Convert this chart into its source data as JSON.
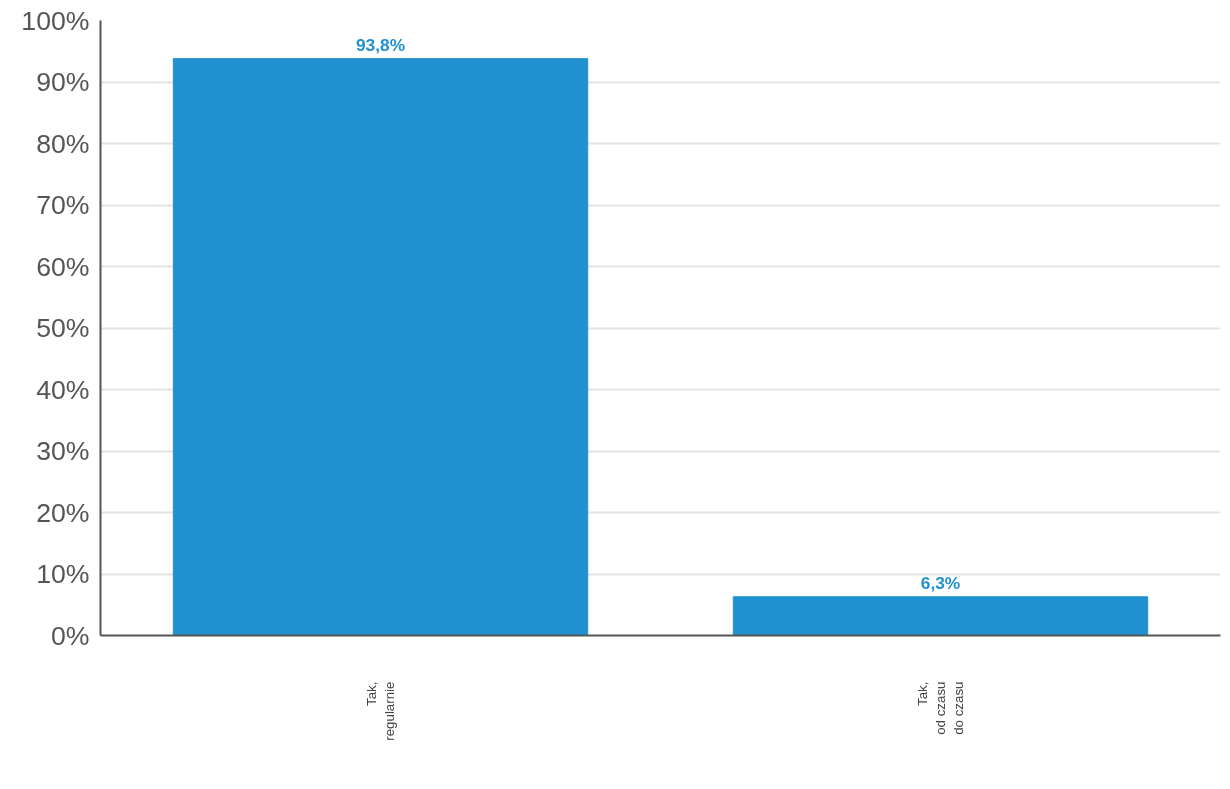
{
  "chart_data": {
    "type": "bar",
    "categories": [
      "Tak,\nregularnie",
      "Tak,\nod czasu\ndo czasu"
    ],
    "values": [
      93.8,
      6.3
    ],
    "value_labels": [
      "93,8%",
      "6,3%"
    ],
    "color": "#2190d1",
    "ylim": [
      0,
      100
    ],
    "yticks": [
      {
        "value": 0,
        "label": "0%"
      },
      {
        "value": 10,
        "label": "10%"
      },
      {
        "value": 20,
        "label": "20%"
      },
      {
        "value": 30,
        "label": "30%"
      },
      {
        "value": 40,
        "label": "40%"
      },
      {
        "value": 50,
        "label": "50%"
      },
      {
        "value": 60,
        "label": "60%"
      },
      {
        "value": 70,
        "label": "70%"
      },
      {
        "value": 80,
        "label": "80%"
      },
      {
        "value": 90,
        "label": "90%"
      },
      {
        "value": 100,
        "label": "100%"
      }
    ],
    "grid": "y"
  }
}
